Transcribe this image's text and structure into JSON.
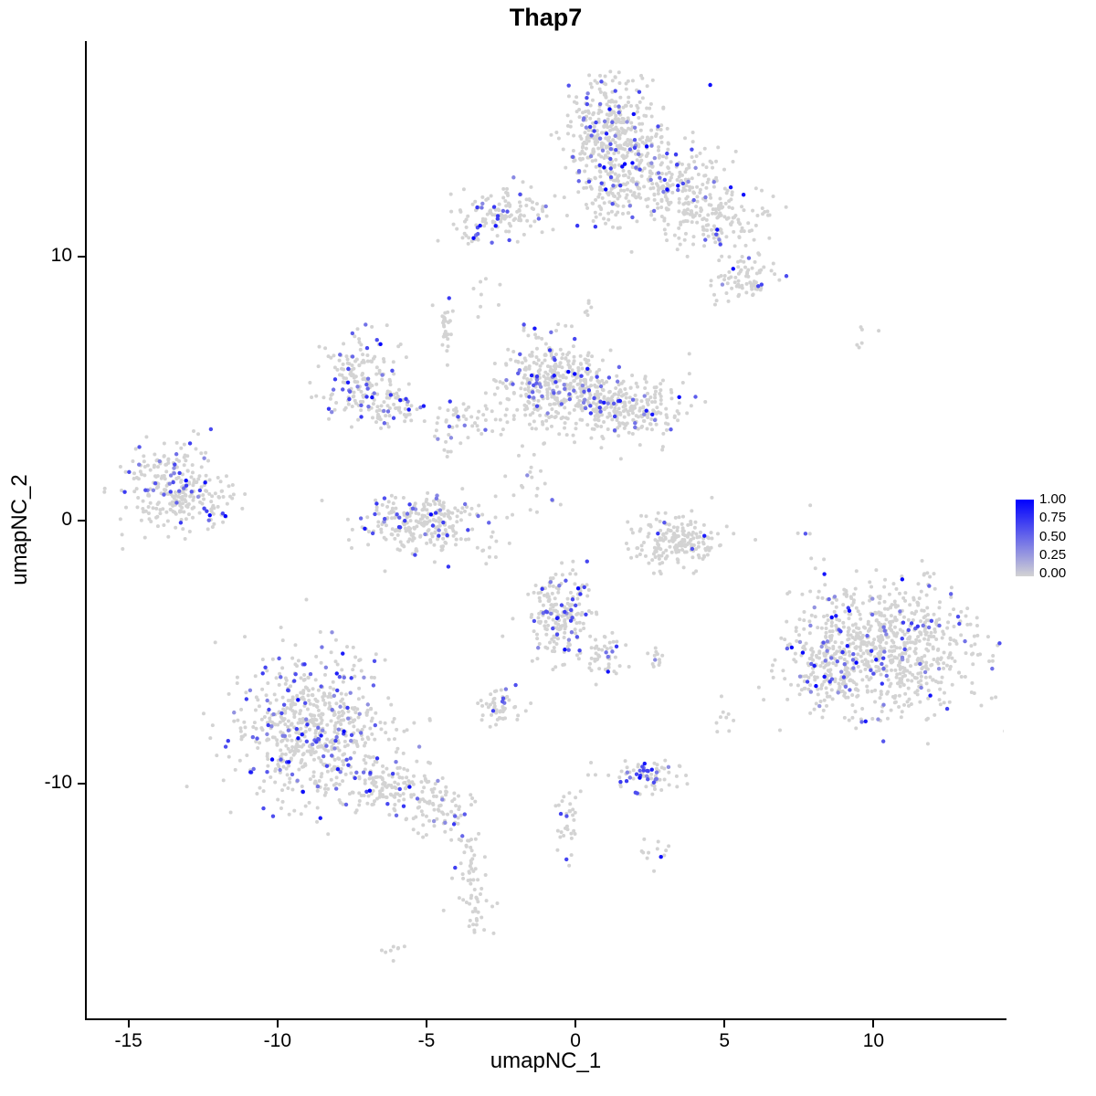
{
  "legend": {
    "labels": [
      "1.00",
      "0.75",
      "0.50",
      "0.25",
      "0.00"
    ]
  },
  "chart_data": {
    "type": "scatter",
    "title": "Thap7",
    "xlabel": "umapNC_1",
    "ylabel": "umapNC_2",
    "xlim": [
      -16.4,
      14.4
    ],
    "ylim": [
      -18.9,
      18.2
    ],
    "x_ticks": [
      -15,
      -10,
      -5,
      0,
      5,
      10
    ],
    "y_ticks": [
      10,
      0,
      -10
    ],
    "grid": false,
    "legend_position": "right",
    "point_color_low": "#D3D3D3",
    "point_color_high": "#0000FF",
    "color_scale": [
      0.0,
      1.0
    ],
    "seed": 42,
    "clusters": [
      {
        "x": 1.2,
        "y": 14.8,
        "sx": 0.85,
        "sy": 0.95,
        "n": 380,
        "f": 0.13
      },
      {
        "x": 2.9,
        "y": 13.0,
        "sx": 1.1,
        "sy": 0.8,
        "n": 260,
        "f": 0.1
      },
      {
        "x": 4.7,
        "y": 11.4,
        "sx": 0.9,
        "sy": 0.65,
        "n": 150,
        "f": 0.09
      },
      {
        "x": 5.6,
        "y": 9.2,
        "sx": 0.5,
        "sy": 0.55,
        "n": 80,
        "f": 0.1
      },
      {
        "x": 1.1,
        "y": 12.1,
        "sx": 0.45,
        "sy": 0.8,
        "n": 70,
        "f": 0.08
      },
      {
        "x": -2.4,
        "y": 11.7,
        "sx": 0.85,
        "sy": 0.45,
        "n": 130,
        "f": 0.15
      },
      {
        "x": -3.4,
        "y": 10.6,
        "sx": 0.25,
        "sy": 0.25,
        "n": 14,
        "f": 0.1
      },
      {
        "x": -7.2,
        "y": 5.5,
        "sx": 0.6,
        "sy": 0.75,
        "n": 160,
        "f": 0.2
      },
      {
        "x": -6.2,
        "y": 4.3,
        "sx": 0.55,
        "sy": 0.45,
        "n": 70,
        "f": 0.1
      },
      {
        "x": -0.8,
        "y": 5.2,
        "sx": 0.85,
        "sy": 0.9,
        "n": 380,
        "f": 0.12
      },
      {
        "x": 2.0,
        "y": 4.2,
        "sx": 0.85,
        "sy": 0.6,
        "n": 200,
        "f": 0.1
      },
      {
        "x": 0.6,
        "y": 4.7,
        "sx": 0.5,
        "sy": 0.5,
        "n": 90,
        "f": 0.08
      },
      {
        "x": -4.4,
        "y": 7.3,
        "sx": 0.15,
        "sy": 0.6,
        "n": 30,
        "f": 0.07
      },
      {
        "x": -3.6,
        "y": 3.9,
        "sx": 0.65,
        "sy": 0.35,
        "n": 45,
        "f": 0.15
      },
      {
        "x": -13.6,
        "y": 1.2,
        "sx": 0.85,
        "sy": 0.85,
        "n": 260,
        "f": 0.12
      },
      {
        "x": -11.9,
        "y": 0.8,
        "sx": 0.4,
        "sy": 0.5,
        "n": 30,
        "f": 0.05
      },
      {
        "x": -5.2,
        "y": -0.1,
        "sx": 1.0,
        "sy": 0.55,
        "n": 260,
        "f": 0.14
      },
      {
        "x": 3.5,
        "y": -0.8,
        "sx": 0.75,
        "sy": 0.5,
        "n": 190,
        "f": 0.04
      },
      {
        "x": 3.9,
        "y": -1.0,
        "sx": 0.05,
        "sy": 0.05,
        "n": 1,
        "f": 1.0
      },
      {
        "x": -0.5,
        "y": -3.6,
        "sx": 0.55,
        "sy": 0.85,
        "n": 210,
        "f": 0.14
      },
      {
        "x": 0.9,
        "y": -5.1,
        "sx": 0.4,
        "sy": 0.4,
        "n": 45,
        "f": 0.1
      },
      {
        "x": 2.8,
        "y": -5.2,
        "sx": 0.2,
        "sy": 0.2,
        "n": 12,
        "f": 0.15
      },
      {
        "x": -2.5,
        "y": -7.1,
        "sx": 0.35,
        "sy": 0.35,
        "n": 55,
        "f": 0.15
      },
      {
        "x": -8.8,
        "y": -7.9,
        "sx": 1.4,
        "sy": 1.4,
        "n": 680,
        "f": 0.17
      },
      {
        "x": -6.1,
        "y": -10.1,
        "sx": 0.9,
        "sy": 0.5,
        "n": 130,
        "f": 0.12
      },
      {
        "x": -4.5,
        "y": -11.2,
        "sx": 0.5,
        "sy": 0.5,
        "n": 60,
        "f": 0.1
      },
      {
        "x": -3.6,
        "y": -13.0,
        "sx": 0.25,
        "sy": 0.7,
        "n": 35,
        "f": 0.06
      },
      {
        "x": -3.4,
        "y": -14.9,
        "sx": 0.3,
        "sy": 0.5,
        "n": 30,
        "f": 0.08
      },
      {
        "x": -6.1,
        "y": -16.2,
        "sx": 0.25,
        "sy": 0.2,
        "n": 8,
        "f": 0.0
      },
      {
        "x": 10.3,
        "y": -4.9,
        "sx": 1.6,
        "sy": 1.25,
        "n": 780,
        "f": 0.09
      },
      {
        "x": 8.4,
        "y": -5.6,
        "sx": 0.6,
        "sy": 0.8,
        "n": 120,
        "f": 0.15
      },
      {
        "x": 2.4,
        "y": -9.7,
        "sx": 0.65,
        "sy": 0.3,
        "n": 75,
        "f": 0.3
      },
      {
        "x": -0.2,
        "y": -11.3,
        "sx": 0.2,
        "sy": 0.75,
        "n": 32,
        "f": 0.12
      },
      {
        "x": 2.6,
        "y": -12.5,
        "sx": 0.3,
        "sy": 0.25,
        "n": 12,
        "f": 0.05
      },
      {
        "x": 5.0,
        "y": -7.5,
        "sx": 0.2,
        "sy": 0.4,
        "n": 9,
        "f": 0.25
      },
      {
        "x": 9.7,
        "y": 6.9,
        "sx": 0.3,
        "sy": 0.3,
        "n": 6,
        "f": 0.0
      },
      {
        "x": -2.9,
        "y": 8.6,
        "sx": 0.25,
        "sy": 0.4,
        "n": 7,
        "f": 0.0
      },
      {
        "x": 0.4,
        "y": 8.2,
        "sx": 0.2,
        "sy": 0.3,
        "n": 6,
        "f": 0.0
      },
      {
        "x": -4.4,
        "y": 2.9,
        "sx": 0.25,
        "sy": 0.4,
        "n": 10,
        "f": 0.1
      },
      {
        "x": -1.5,
        "y": 1.2,
        "sx": 0.6,
        "sy": 0.8,
        "n": 18,
        "f": 0.08
      },
      {
        "x": -2.7,
        "y": -1.3,
        "sx": 0.5,
        "sy": 0.4,
        "n": 10,
        "f": 0.0
      },
      {
        "x": 7.9,
        "y": -0.6,
        "sx": 0.25,
        "sy": 0.9,
        "n": 8,
        "f": 0.25
      }
    ]
  }
}
